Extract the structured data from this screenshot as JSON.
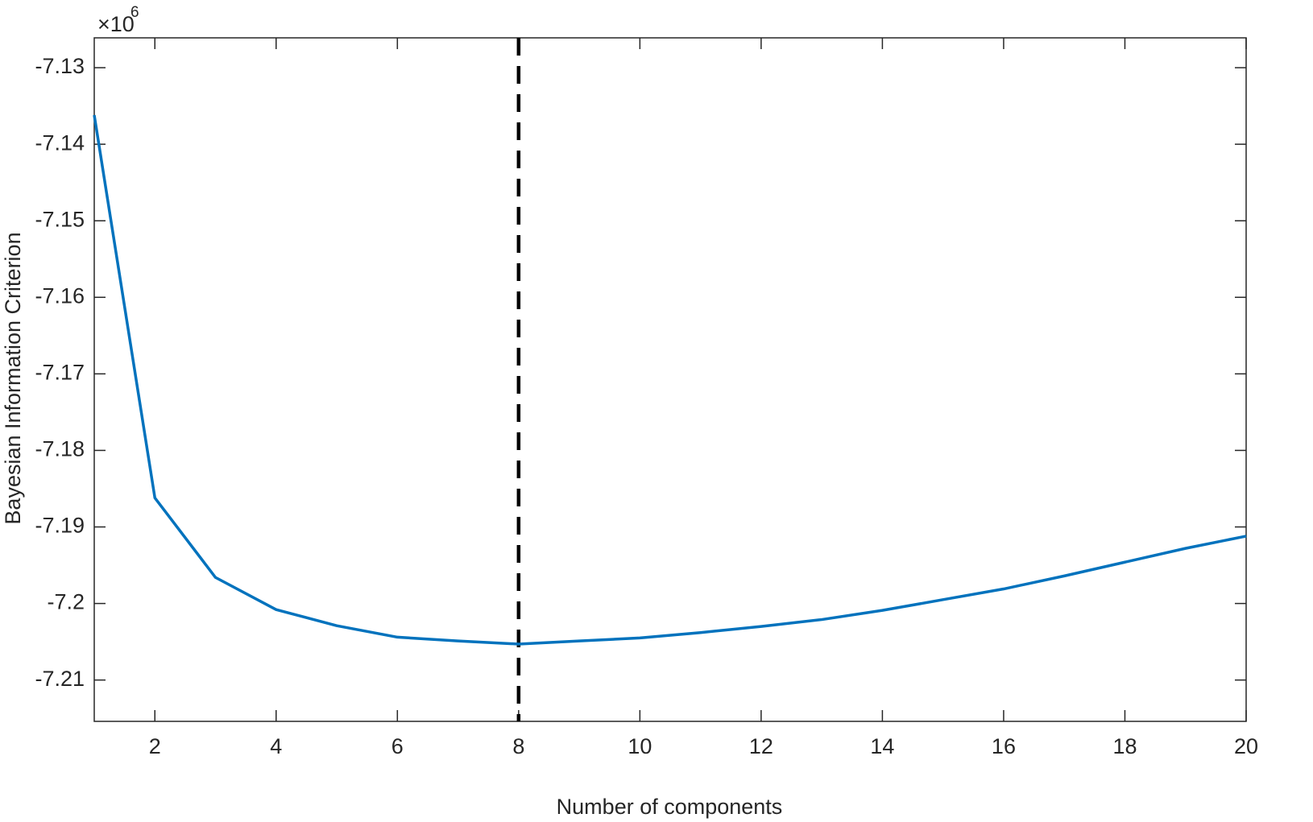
{
  "chart_data": {
    "type": "line",
    "x_label": "Number of components",
    "y_label": "Bayesian Information Criterion",
    "y_multiplier": "×10",
    "y_multiplier_exponent": "6",
    "x": [
      1,
      2,
      3,
      4,
      5,
      6,
      7,
      8,
      9,
      10,
      11,
      12,
      13,
      14,
      15,
      16,
      17,
      18,
      19,
      20
    ],
    "series": [
      {
        "color": "#0072bd",
        "values": [
          -7.1362,
          -7.1862,
          -7.1966,
          -7.2008,
          -7.2029,
          -7.2044,
          -7.2049,
          -7.2053,
          -7.2049,
          -7.2045,
          -7.2038,
          -7.203,
          -7.2021,
          -7.2009,
          -7.1995,
          -7.1981,
          -7.1964,
          -7.1946,
          -7.1928,
          -7.1912
        ]
      }
    ],
    "vlines": [
      8
    ],
    "vline_color": "#000000",
    "xlim": [
      1,
      20
    ],
    "xticks": [
      2,
      4,
      6,
      8,
      10,
      12,
      14,
      16,
      18,
      20
    ],
    "ylim": [
      -7.2154,
      -7.1261
    ],
    "yticks": [
      -7.21,
      -7.2,
      -7.19,
      -7.18,
      -7.17,
      -7.16,
      -7.15,
      -7.14,
      -7.13
    ]
  }
}
